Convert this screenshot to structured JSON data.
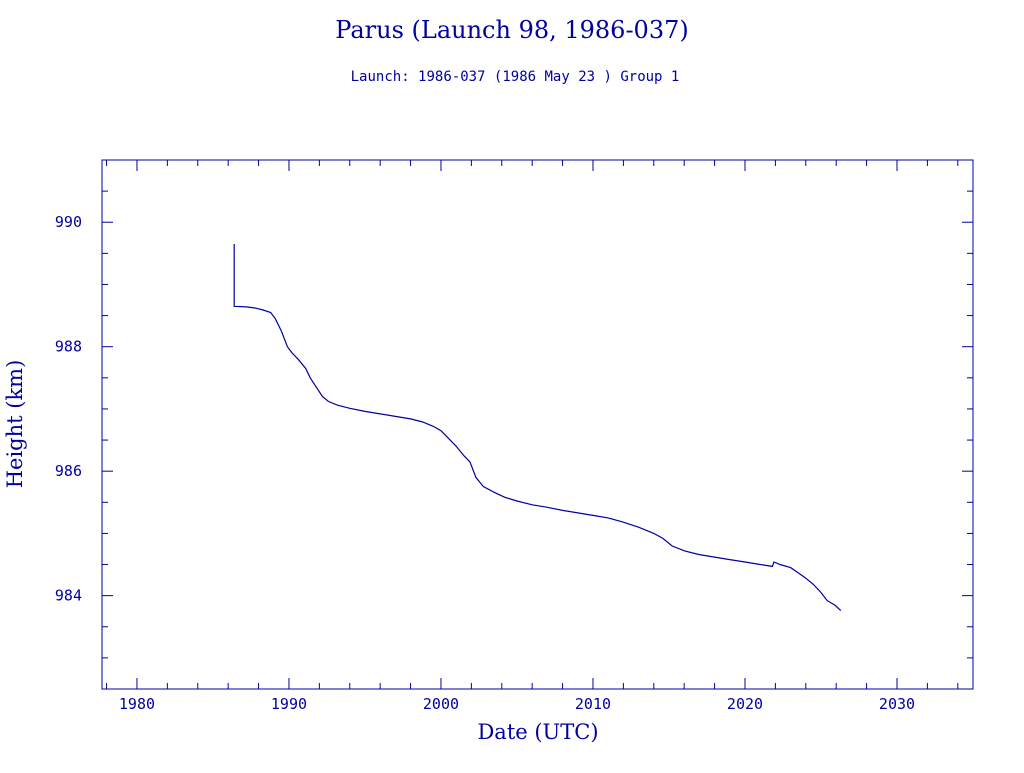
{
  "chart_data": {
    "type": "line",
    "title": "Parus (Launch 98, 1986-037)",
    "subtitle": "Launch: 1986-037  (1986 May 23 )  Group 1",
    "xlabel": "Date (UTC)",
    "ylabel": "Height (km)",
    "xlim": [
      1977.7,
      2035.0
    ],
    "ylim": [
      982.5,
      991.0
    ],
    "x_ticks": [
      1980,
      1990,
      2000,
      2010,
      2020,
      2030
    ],
    "x_tick_labels": [
      "1980",
      "1990",
      "2000",
      "2010",
      "2020",
      "2030"
    ],
    "y_ticks": [
      984,
      986,
      988,
      990
    ],
    "y_tick_labels": [
      "984",
      "986",
      "988",
      "990"
    ],
    "grid": false,
    "colors": {
      "ink": "#0000a0",
      "background": "#ffffff"
    },
    "series": [
      {
        "x": [
          1986.4,
          1986.4,
          1987.2,
          1987.8,
          1988.3,
          1988.8,
          1989.1,
          1989.5,
          1989.9,
          1990.2,
          1990.6,
          1991.1,
          1991.4,
          1991.8,
          1992.2,
          1992.6,
          1993.2,
          1994.0,
          1995.0,
          1996.0,
          1997.0,
          1998.0,
          1998.8,
          1999.5,
          2000.0,
          2000.4,
          2001.0,
          2001.5,
          2001.9,
          2002.3,
          2002.8,
          2003.5,
          2004.2,
          2005.0,
          2006.0,
          2007.0,
          2008.0,
          2009.0,
          2010.0,
          2011.0,
          2012.0,
          2013.0,
          2014.0,
          2014.6,
          2015.2,
          2016.0,
          2017.0,
          2018.0,
          2019.0,
          2020.0,
          2021.0,
          2021.8,
          2021.9,
          2022.3,
          2023.0,
          2023.6,
          2024.0,
          2024.5,
          2025.0,
          2025.4,
          2025.9,
          2026.3
        ],
        "y": [
          989.65,
          988.65,
          988.64,
          988.62,
          988.59,
          988.55,
          988.45,
          988.25,
          988.0,
          987.9,
          987.8,
          987.65,
          987.5,
          987.35,
          987.2,
          987.12,
          987.06,
          987.01,
          986.96,
          986.92,
          986.88,
          986.84,
          986.79,
          986.72,
          986.65,
          986.55,
          986.4,
          986.25,
          986.15,
          985.9,
          985.75,
          985.66,
          985.58,
          985.52,
          985.46,
          985.42,
          985.37,
          985.33,
          985.29,
          985.25,
          985.18,
          985.1,
          985.0,
          984.92,
          984.8,
          984.72,
          984.66,
          984.62,
          984.58,
          984.54,
          984.5,
          984.47,
          984.54,
          984.5,
          984.45,
          984.35,
          984.28,
          984.18,
          984.05,
          983.92,
          983.85,
          983.76
        ]
      }
    ]
  }
}
